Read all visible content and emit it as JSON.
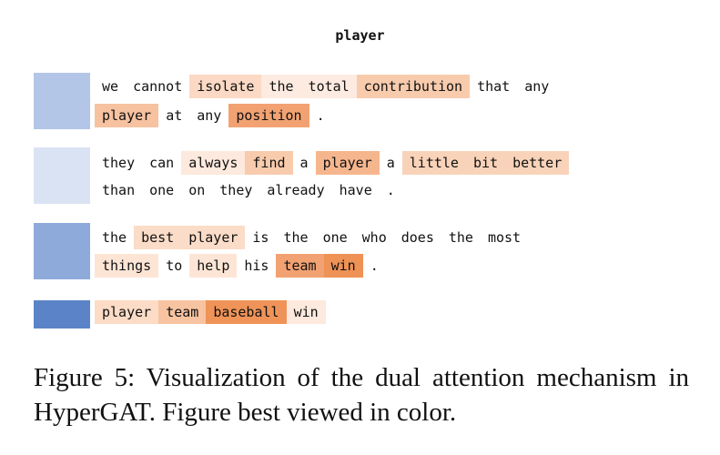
{
  "title": "player",
  "rows": [
    {
      "square_color": "#b3c6e7",
      "lines": [
        [
          {
            "t": "we",
            "bg": "#ffffff"
          },
          {
            "t": "cannot",
            "bg": "#ffffff"
          },
          {
            "t": "isolate",
            "bg": "#fbd9c4"
          },
          {
            "t": "the",
            "bg": "#fdebe1"
          },
          {
            "t": "total",
            "bg": "#fdebe1"
          },
          {
            "t": "contribution",
            "bg": "#f8cbad"
          },
          {
            "t": "that",
            "bg": "#ffffff"
          },
          {
            "t": "any",
            "bg": "#ffffff"
          }
        ],
        [
          {
            "t": "player",
            "bg": "#f7c2a0"
          },
          {
            "t": "at",
            "bg": "#ffffff"
          },
          {
            "t": "any",
            "bg": "#ffffff"
          },
          {
            "t": "position",
            "bg": "#f2a272"
          },
          {
            "t": ".",
            "bg": "#ffffff"
          }
        ]
      ]
    },
    {
      "square_color": "#dae3f3",
      "lines": [
        [
          {
            "t": "they",
            "bg": "#ffffff"
          },
          {
            "t": "can",
            "bg": "#ffffff"
          },
          {
            "t": "always",
            "bg": "#fde9dd"
          },
          {
            "t": "find",
            "bg": "#f8cbad"
          },
          {
            "t": "a",
            "bg": "#ffffff"
          },
          {
            "t": "player",
            "bg": "#f6b68d"
          },
          {
            "t": "a",
            "bg": "#ffffff"
          },
          {
            "t": "little",
            "bg": "#f9d3b9"
          },
          {
            "t": "bit",
            "bg": "#f9d3b9"
          },
          {
            "t": "better",
            "bg": "#f9d3b9"
          }
        ],
        [
          {
            "t": "than",
            "bg": "#ffffff"
          },
          {
            "t": "one",
            "bg": "#ffffff"
          },
          {
            "t": "on",
            "bg": "#ffffff"
          },
          {
            "t": "they",
            "bg": "#ffffff"
          },
          {
            "t": "already",
            "bg": "#ffffff"
          },
          {
            "t": "have",
            "bg": "#ffffff"
          },
          {
            "t": ".",
            "bg": "#ffffff"
          }
        ]
      ]
    },
    {
      "square_color": "#8eaadb",
      "lines": [
        [
          {
            "t": "the",
            "bg": "#ffffff"
          },
          {
            "t": "best",
            "bg": "#fbdcc8"
          },
          {
            "t": "player",
            "bg": "#fbdcc8"
          },
          {
            "t": "is",
            "bg": "#ffffff"
          },
          {
            "t": "the",
            "bg": "#ffffff"
          },
          {
            "t": "one",
            "bg": "#ffffff"
          },
          {
            "t": "who",
            "bg": "#ffffff"
          },
          {
            "t": "does",
            "bg": "#ffffff"
          },
          {
            "t": "the",
            "bg": "#ffffff"
          },
          {
            "t": "most",
            "bg": "#ffffff"
          }
        ],
        [
          {
            "t": "things",
            "bg": "#fde5d6"
          },
          {
            "t": "to",
            "bg": "#ffffff"
          },
          {
            "t": "help",
            "bg": "#fde5d6"
          },
          {
            "t": "his",
            "bg": "#ffffff"
          },
          {
            "t": "team",
            "bg": "#f2a272"
          },
          {
            "t": "win",
            "bg": "#ee9255"
          },
          {
            "t": ".",
            "bg": "#ffffff"
          }
        ]
      ]
    },
    {
      "square_color": "#5b84c8",
      "lines": [
        [
          {
            "t": "player",
            "bg": "#fcdcc6"
          },
          {
            "t": "team",
            "bg": "#f8c3a1"
          },
          {
            "t": "baseball",
            "bg": "#ef9358"
          },
          {
            "t": "win",
            "bg": "#fde9dd"
          }
        ]
      ]
    }
  ],
  "caption": "Figure 5:  Visualization of the dual attention mechanism in HyperGAT. Figure best viewed in color."
}
